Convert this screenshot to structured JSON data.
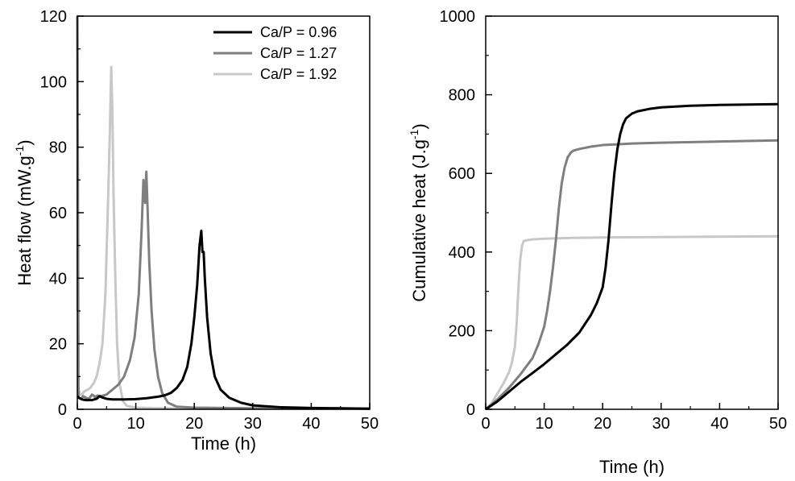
{
  "chart_data": [
    {
      "type": "line",
      "xlabel": "Time (h)",
      "ylabel": "Heat flow (mW.g",
      "ylabel_sup": "-1",
      "ylabel_end": ")",
      "xlim": [
        0,
        50
      ],
      "ylim": [
        0,
        120
      ],
      "xticks": [
        "0",
        "10",
        "20",
        "30",
        "40",
        "50"
      ],
      "yticks": [
        "0",
        "20",
        "40",
        "60",
        "80",
        "100",
        "120"
      ],
      "legend": {
        "position": "top-right"
      },
      "series": [
        {
          "name": "Ca/P = 0.96",
          "color": "#000000",
          "x": [
            0,
            0.3,
            0.8,
            1.5,
            2.5,
            3.3,
            3.8,
            4.3,
            5,
            6,
            8,
            10,
            12,
            14,
            15,
            16,
            17,
            18,
            18.8,
            19.5,
            20,
            20.5,
            20.9,
            21.2,
            21.4,
            21.6,
            21.8,
            22.2,
            22.8,
            23.5,
            24.5,
            26,
            28,
            30,
            35,
            40,
            45,
            50
          ],
          "y": [
            4,
            3.5,
            3,
            2.8,
            2.8,
            3.2,
            4,
            3.6,
            3.2,
            3,
            3,
            3.1,
            3.4,
            3.9,
            4.3,
            5,
            6.5,
            9,
            13,
            20,
            28,
            38,
            50,
            54.5,
            48,
            48,
            40,
            28,
            17,
            10,
            6,
            3.5,
            2,
            1.2,
            0.6,
            0.4,
            0.3,
            0.2
          ]
        },
        {
          "name": "Ca/P = 1.27",
          "color": "#7f7f7f",
          "x": [
            0,
            0.2,
            0.6,
            1,
            1.5,
            2,
            2.5,
            3,
            3.5,
            4,
            5,
            6,
            7,
            8,
            9,
            9.8,
            10.5,
            11,
            11.3,
            11.6,
            11.8,
            12,
            12.3,
            12.7,
            13.2,
            13.8,
            14.5,
            15.5,
            17,
            20,
            30,
            50
          ],
          "y": [
            120,
            3.5,
            3.2,
            4,
            3.5,
            3.2,
            4.5,
            3.8,
            4.2,
            4,
            4.5,
            6,
            7.5,
            10,
            15,
            22,
            35,
            55,
            70,
            63,
            72.5,
            62,
            45,
            30,
            18,
            10,
            5,
            2,
            0.8,
            0.5,
            0.3,
            0.2
          ]
        },
        {
          "name": "Ca/P = 1.92",
          "color": "#c8c8c8",
          "x": [
            0,
            0.05,
            0.2,
            0.5,
            0.8,
            1.2,
            1.6,
            2.2,
            2.8,
            3.3,
            3.8,
            4.3,
            4.8,
            5.2,
            5.5,
            5.8,
            6,
            6.2,
            6.5,
            6.8,
            7.2,
            7.8,
            8.5,
            10,
            15,
            30,
            50
          ],
          "y": [
            30,
            120,
            6,
            4.5,
            4.5,
            5.5,
            5.8,
            6.5,
            8,
            10,
            14,
            20,
            35,
            60,
            80,
            104.5,
            90,
            65,
            40,
            20,
            8,
            2.5,
            1,
            0.5,
            0.3,
            0.2,
            0.2
          ]
        }
      ]
    },
    {
      "type": "line",
      "xlabel": "Time (h)",
      "ylabel": "Cumulative heat (J.g",
      "ylabel_sup": "-1",
      "ylabel_end": ")",
      "xlim": [
        0,
        50
      ],
      "ylim": [
        0,
        1000
      ],
      "xticks": [
        "0",
        "10",
        "20",
        "30",
        "40",
        "50"
      ],
      "yticks": [
        "0",
        "200",
        "400",
        "600",
        "800",
        "1000"
      ],
      "series": [
        {
          "name": "Ca/P = 0.96",
          "color": "#000000",
          "x": [
            0,
            2,
            4,
            6,
            8,
            10,
            12,
            14,
            16,
            18,
            19,
            20,
            20.5,
            21,
            21.5,
            22,
            22.5,
            23,
            23.5,
            24,
            25,
            26,
            28,
            30,
            35,
            40,
            45,
            50
          ],
          "y": [
            0,
            20,
            45,
            70,
            92,
            115,
            140,
            165,
            195,
            240,
            270,
            310,
            360,
            430,
            520,
            600,
            660,
            700,
            725,
            740,
            752,
            758,
            764,
            768,
            772,
            774,
            775,
            776
          ]
        },
        {
          "name": "Ca/P = 1.27",
          "color": "#7f7f7f",
          "x": [
            0,
            2,
            4,
            6,
            8,
            9,
            10,
            10.5,
            11,
            11.5,
            12,
            12.5,
            13,
            13.5,
            14,
            14.5,
            15,
            16,
            18,
            20,
            25,
            30,
            40,
            50
          ],
          "y": [
            0,
            25,
            55,
            90,
            130,
            165,
            210,
            250,
            300,
            360,
            430,
            510,
            575,
            615,
            640,
            652,
            658,
            662,
            668,
            672,
            676,
            678,
            681,
            684
          ]
        },
        {
          "name": "Ca/P = 1.92",
          "color": "#c8c8c8",
          "x": [
            0,
            1,
            2,
            3,
            4,
            4.5,
            5,
            5.3,
            5.6,
            5.9,
            6.2,
            6.5,
            7,
            8,
            10,
            15,
            20,
            30,
            40,
            50
          ],
          "y": [
            0,
            15,
            40,
            65,
            95,
            120,
            160,
            220,
            310,
            380,
            415,
            428,
            430,
            432,
            434,
            436,
            437,
            438,
            439,
            440
          ]
        }
      ]
    }
  ]
}
